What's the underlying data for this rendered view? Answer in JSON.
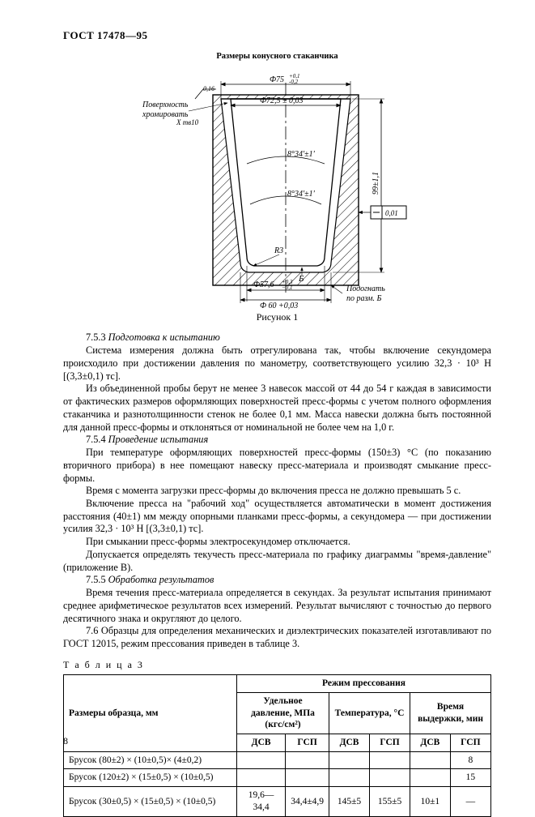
{
  "header": {
    "gost": "ГОСТ 17478—95"
  },
  "figure": {
    "title": "Размеры конусного стаканчика",
    "caption": "Рисунок 1",
    "labels": {
      "surface1": "Поверхность",
      "surface2": "хромировать",
      "chrome": "Х тв10",
      "roughness": "0,16",
      "d75": "Ф75",
      "d75tol1": "+0,1",
      "d75tol2": "-0,2",
      "d725": "Ф72,5 ± 0,03",
      "h99": "99±1,1",
      "flat": "0,01",
      "ang1": "8°34'±1'",
      "ang2": "8°34'±1'",
      "r3": "R3",
      "b": "Б",
      "d576": "Ф57,6",
      "d576t1": "+0,3",
      "d576t2": "−0,1",
      "d60": "Ф 60 +0,03",
      "fit1": "Подогнать",
      "fit2": "по разм. Б"
    }
  },
  "body": {
    "s753h": "7.5.3",
    "s753t": "Подготовка к испытанию",
    "p1": "Система измерения должна быть отрегулирована так, чтобы включение секундомера происходило при достижении давления по манометру, соответствующего усилию 32,3 · 10³ Н [(3,3±0,1) тс].",
    "p2": "Из объединенной пробы берут не менее 3 навесок массой от 44 до 54 г каждая в зависимости от фактических размеров оформляющих поверхностей пресс-формы с учетом полного оформления стаканчика и разнотолщинности стенок не более 0,1 мм. Масса навески должна быть постоянной для данной пресс-формы и отклоняться от номинальной не более чем на 1,0 г.",
    "s754h": "7.5.4",
    "s754t": "Проведение испытания",
    "p3": "При температуре оформляющих поверхностей пресс-формы (150±3) °С (по показанию вторичного прибора) в нее помещают навеску пресс-материала и производят смыкание пресс-формы.",
    "p4": "Время с момента загрузки пресс-формы до включения пресса не должно превышать 5 с.",
    "p5a": "Включение пресса на ",
    "p5q": "\"рабочий ход\"",
    "p5b": " осуществляется автоматически в момент достижения расстояния (40±1) мм между опорными планками пресс-формы, а секундомера — при достижении усилия 32,3 · 10³ Н [(3,3±0,1) тс].",
    "p6": "При смыкании пресс-формы электросекундомер отключается.",
    "p7a": "Допускается определять текучесть пресс-материала по графику диаграммы ",
    "p7q": "\"время-давление\"",
    "p7b": " (приложение В).",
    "s755h": "7.5.5",
    "s755t": "Обработка результатов",
    "p8": "Время течения пресс-материала определяется в секундах. За результат испытания принимают среднее арифметическое результатов всех измерений. Результат вычисляют с точностью до первого десятичного знака и округляют до целого.",
    "p9": "7.6 Образцы для определения механических и диэлектрических показателей изготавливают по ГОСТ 12015, режим прессования приведен в таблице 3."
  },
  "table": {
    "caption": "Т а б л и ц а 3",
    "h_size": "Размеры образца, мм",
    "h_mode": "Режим прессования",
    "h_press": "Удельное давление, МПа (кгс/см²)",
    "h_temp": "Температура, °С",
    "h_hold": "Время выдержки, мин",
    "dsv": "ДСВ",
    "gsp": "ГСП",
    "rows": [
      {
        "size": "Брусок (80±2) × (10±0,5)× (4±0,2)",
        "p1": "",
        "p2": "",
        "t1": "",
        "t2": "",
        "h1": "",
        "h2": "8"
      },
      {
        "size": "Брусок (120±2) × (15±0,5) × (10±0,5)",
        "p1": "",
        "p2": "",
        "t1": "",
        "t2": "",
        "h1": "",
        "h2": "15"
      },
      {
        "size": "Брусок (30±0,5) × (15±0,5) × (10±0,5)",
        "p1": "19,6—34,4",
        "p2": "34,4±4,9",
        "t1": "145±5",
        "t2": "155±5",
        "h1": "10±1",
        "h2": "—"
      }
    ]
  },
  "pagenum": "8"
}
